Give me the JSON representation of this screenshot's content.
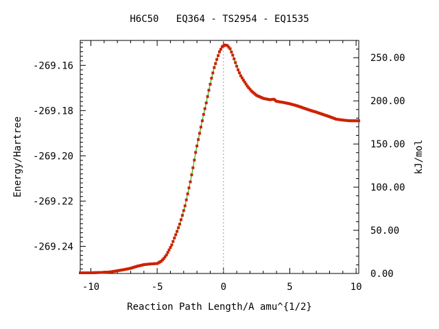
{
  "chart_data": {
    "type": "line",
    "title": "H6C50   EQ364 - TS2954 - EQ1535",
    "xlabel": "Reaction Path Length/A amu^{1/2}",
    "ylabel": "Energy/Hartree",
    "y2label": "kJ/mol",
    "xlim": [
      -10.8,
      10.2
    ],
    "ylim": [
      -269.252,
      -269.149
    ],
    "y2lim": [
      0,
      270
    ],
    "x_ticks": [
      "-10",
      "-5",
      "0",
      "5",
      "10"
    ],
    "x_tick_values": [
      -10,
      -5,
      0,
      5,
      10
    ],
    "y_ticks": [
      "-269.16",
      "-269.18",
      "-269.20",
      "-269.22",
      "-269.24"
    ],
    "y_tick_values": [
      -269.16,
      -269.18,
      -269.2,
      -269.22,
      -269.24
    ],
    "y2_ticks": [
      "250.00",
      "200.00",
      "150.00",
      "100.00",
      "50.00",
      "0.00"
    ],
    "y2_tick_values": [
      250,
      200,
      150,
      100,
      50,
      0
    ],
    "grid": false,
    "legend": "none",
    "ts_marker_x": 0,
    "line_color": "#00aa00",
    "marker_color": "#cc2200",
    "vline_color": "#999999",
    "curve": [
      [
        -10.8,
        -269.2517
      ],
      [
        -10.0,
        -269.2517
      ],
      [
        -9.0,
        -269.2515
      ],
      [
        -8.5,
        -269.2513
      ],
      [
        -8.0,
        -269.2508
      ],
      [
        -7.5,
        -269.2503
      ],
      [
        -7.0,
        -269.2497
      ],
      [
        -6.5,
        -269.2488
      ],
      [
        -6.0,
        -269.2481
      ],
      [
        -5.5,
        -269.2478
      ],
      [
        -5.0,
        -269.2476
      ],
      [
        -4.7,
        -269.2466
      ],
      [
        -4.5,
        -269.2454
      ],
      [
        -4.3,
        -269.2438
      ],
      [
        -4.1,
        -269.2416
      ],
      [
        -3.9,
        -269.2394
      ],
      [
        -3.7,
        -269.2363
      ],
      [
        -3.5,
        -269.2334
      ],
      [
        -3.3,
        -269.2302
      ],
      [
        -3.1,
        -269.2263
      ],
      [
        -2.9,
        -269.2221
      ],
      [
        -2.7,
        -269.2168
      ],
      [
        -2.5,
        -269.2115
      ],
      [
        -2.3,
        -269.2053
      ],
      [
        -2.1,
        -269.1985
      ],
      [
        -1.9,
        -269.1928
      ],
      [
        -1.7,
        -269.1873
      ],
      [
        -1.5,
        -269.1817
      ],
      [
        -1.3,
        -269.1766
      ],
      [
        -1.1,
        -269.171
      ],
      [
        -0.9,
        -269.1657
      ],
      [
        -0.7,
        -269.161
      ],
      [
        -0.5,
        -269.1574
      ],
      [
        -0.3,
        -269.154
      ],
      [
        -0.1,
        -269.1518
      ],
      [
        0.1,
        -269.151
      ],
      [
        0.3,
        -269.1513
      ],
      [
        0.5,
        -269.1527
      ],
      [
        0.7,
        -269.1555
      ],
      [
        0.9,
        -269.1588
      ],
      [
        1.1,
        -269.162
      ],
      [
        1.3,
        -269.1646
      ],
      [
        1.5,
        -269.1665
      ],
      [
        1.8,
        -269.1692
      ],
      [
        2.1,
        -269.1713
      ],
      [
        2.5,
        -269.1733
      ],
      [
        3.0,
        -269.1746
      ],
      [
        3.5,
        -269.1752
      ],
      [
        3.8,
        -269.175
      ],
      [
        4.0,
        -269.1759
      ],
      [
        4.5,
        -269.1764
      ],
      [
        5.0,
        -269.177
      ],
      [
        5.5,
        -269.1778
      ],
      [
        6.0,
        -269.1788
      ],
      [
        6.5,
        -269.1798
      ],
      [
        7.0,
        -269.1807
      ],
      [
        7.5,
        -269.1817
      ],
      [
        8.0,
        -269.1827
      ],
      [
        8.5,
        -269.1838
      ],
      [
        9.0,
        -269.1842
      ],
      [
        9.5,
        -269.1845
      ],
      [
        10.2,
        -269.1845
      ]
    ]
  }
}
